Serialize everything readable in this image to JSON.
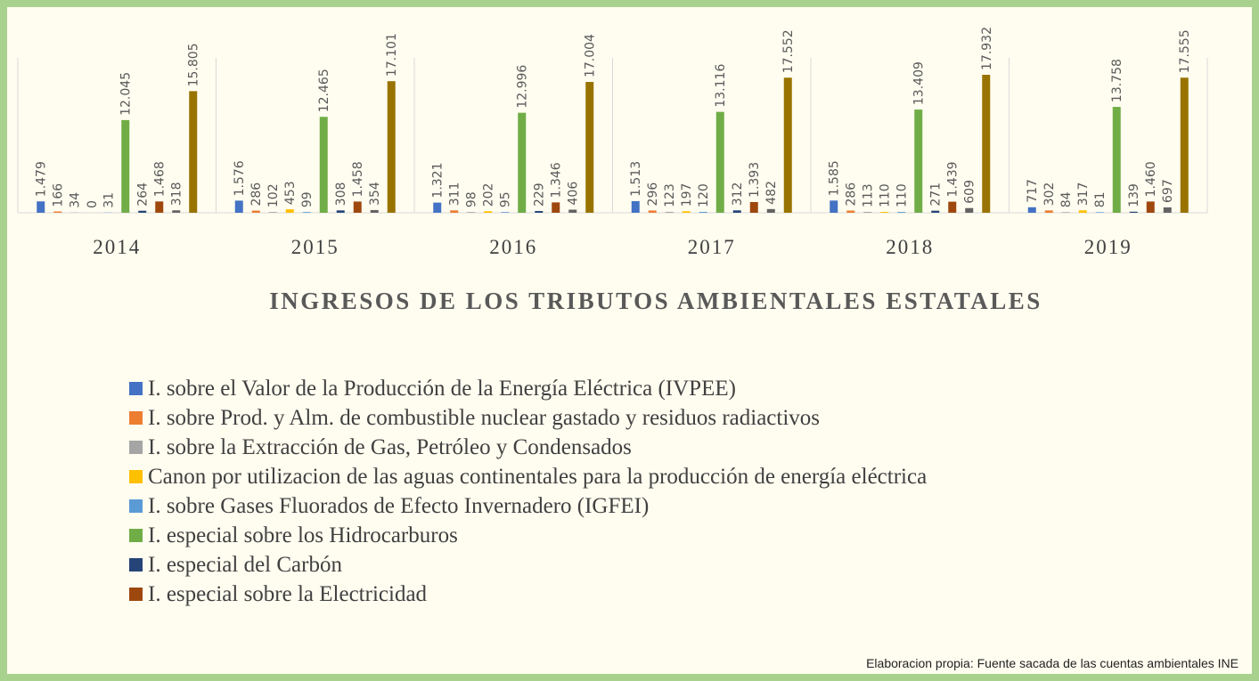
{
  "chart_data": {
    "type": "bar",
    "title": "INGRESOS DE LOS TRIBUTOS AMBIENTALES ESTATALES",
    "source": "Elaboracion propia: Fuente sacada de las cuentas ambientales  INE",
    "categories": [
      "2014",
      "2015",
      "2016",
      "2017",
      "2018",
      "2019"
    ],
    "series": [
      {
        "name": "I. sobre el Valor de la Producción de la Energía Eléctrica (IVPEE)",
        "color": "#4472c4",
        "values": [
          1479,
          1576,
          1321,
          1513,
          1585,
          717
        ],
        "value_labels": [
          "1.479",
          "1.576",
          "1.321",
          "1.513",
          "1.585",
          "717"
        ]
      },
      {
        "name": "I. sobre Prod. y Alm. de combustible nuclear gastado y residuos radiactivos",
        "color": "#ed7d31",
        "values": [
          166,
          286,
          311,
          296,
          286,
          302
        ]
      },
      {
        "name": "I. sobre la Extracción de Gas, Petróleo y Condensados",
        "color": "#a5a5a5",
        "values": [
          34,
          102,
          98,
          123,
          113,
          84
        ]
      },
      {
        "name": "Canon por utilizacion de las aguas continentales para la producción de energía eléctrica",
        "color": "#ffc000",
        "values": [
          0,
          453,
          202,
          197,
          110,
          317
        ]
      },
      {
        "name": "I. sobre Gases Fluorados de Efecto Invernadero (IGFEI)",
        "color": "#5b9bd5",
        "values": [
          31,
          99,
          95,
          120,
          110,
          81
        ]
      },
      {
        "name": "I. especial sobre los Hidrocarburos",
        "color": "#70ad47",
        "values": [
          12045,
          12465,
          12996,
          13116,
          13409,
          13758
        ],
        "value_labels": [
          "12.045",
          "12.465",
          "12.996",
          "13.116",
          "13.409",
          "13.758"
        ]
      },
      {
        "name": "I. especial del Carbón",
        "color": "#264478",
        "values": [
          264,
          308,
          229,
          312,
          271,
          139
        ]
      },
      {
        "name": "I. especial sobre la Electricidad",
        "color": "#9e480e",
        "values": [
          1468,
          1458,
          1346,
          1393,
          1439,
          1460
        ],
        "value_labels": [
          "1.468",
          "1.458",
          "1.346",
          "1.393",
          "1.439",
          "1.460"
        ]
      },
      {
        "color": "#636363",
        "values": [
          318,
          354,
          406,
          482,
          609,
          697
        ]
      },
      {
        "color": "#997300",
        "values": [
          15805,
          17101,
          17004,
          17552,
          17932,
          17555
        ],
        "value_labels": [
          "15.805",
          "17.101",
          "17.004",
          "17.552",
          "17.932",
          "17.555"
        ]
      }
    ]
  }
}
